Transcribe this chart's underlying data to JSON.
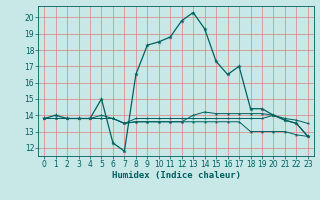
{
  "xlabel": "Humidex (Indice chaleur)",
  "bg_color": "#c8e8e8",
  "grid_color": "#e08080",
  "line_color": "#006060",
  "xlim": [
    -0.5,
    23.5
  ],
  "ylim": [
    11.5,
    20.7
  ],
  "yticks": [
    12,
    13,
    14,
    15,
    16,
    17,
    18,
    19,
    20
  ],
  "xticks": [
    0,
    1,
    2,
    3,
    4,
    5,
    6,
    7,
    8,
    9,
    10,
    11,
    12,
    13,
    14,
    15,
    16,
    17,
    18,
    19,
    20,
    21,
    22,
    23
  ],
  "main_line": [
    [
      0,
      13.8
    ],
    [
      1,
      14.0
    ],
    [
      2,
      13.8
    ],
    [
      3,
      13.8
    ],
    [
      4,
      13.8
    ],
    [
      5,
      15.0
    ],
    [
      6,
      12.3
    ],
    [
      7,
      11.8
    ],
    [
      8,
      16.5
    ],
    [
      9,
      18.3
    ],
    [
      10,
      18.5
    ],
    [
      11,
      18.8
    ],
    [
      12,
      19.8
    ],
    [
      13,
      20.3
    ],
    [
      14,
      19.3
    ],
    [
      15,
      17.3
    ],
    [
      16,
      16.5
    ],
    [
      17,
      17.0
    ],
    [
      18,
      14.4
    ],
    [
      19,
      14.4
    ],
    [
      20,
      14.0
    ],
    [
      21,
      13.7
    ],
    [
      22,
      13.5
    ],
    [
      23,
      12.7
    ]
  ],
  "flat_lines": [
    [
      [
        0,
        13.8
      ],
      [
        1,
        13.8
      ],
      [
        2,
        13.8
      ],
      [
        3,
        13.8
      ],
      [
        4,
        13.8
      ],
      [
        5,
        13.8
      ],
      [
        6,
        13.8
      ],
      [
        7,
        13.5
      ],
      [
        8,
        13.6
      ],
      [
        9,
        13.6
      ],
      [
        10,
        13.6
      ],
      [
        11,
        13.6
      ],
      [
        12,
        13.6
      ],
      [
        13,
        13.6
      ],
      [
        14,
        13.6
      ],
      [
        15,
        13.6
      ],
      [
        16,
        13.6
      ],
      [
        17,
        13.6
      ],
      [
        18,
        13.0
      ],
      [
        19,
        13.0
      ],
      [
        20,
        13.0
      ],
      [
        21,
        13.0
      ],
      [
        22,
        12.8
      ],
      [
        23,
        12.7
      ]
    ],
    [
      [
        0,
        13.8
      ],
      [
        1,
        13.8
      ],
      [
        2,
        13.8
      ],
      [
        3,
        13.8
      ],
      [
        4,
        13.8
      ],
      [
        5,
        13.8
      ],
      [
        6,
        13.8
      ],
      [
        7,
        13.5
      ],
      [
        8,
        13.6
      ],
      [
        9,
        13.6
      ],
      [
        10,
        13.6
      ],
      [
        11,
        13.6
      ],
      [
        12,
        13.6
      ],
      [
        13,
        14.0
      ],
      [
        14,
        14.2
      ],
      [
        15,
        14.1
      ],
      [
        16,
        14.1
      ],
      [
        17,
        14.1
      ],
      [
        18,
        14.1
      ],
      [
        19,
        14.1
      ],
      [
        20,
        14.0
      ],
      [
        21,
        13.7
      ],
      [
        22,
        13.5
      ],
      [
        23,
        12.7
      ]
    ],
    [
      [
        0,
        13.8
      ],
      [
        1,
        13.8
      ],
      [
        2,
        13.8
      ],
      [
        3,
        13.8
      ],
      [
        4,
        13.8
      ],
      [
        5,
        14.0
      ],
      [
        6,
        13.8
      ],
      [
        7,
        13.5
      ],
      [
        8,
        13.8
      ],
      [
        9,
        13.8
      ],
      [
        10,
        13.8
      ],
      [
        11,
        13.8
      ],
      [
        12,
        13.8
      ],
      [
        13,
        13.8
      ],
      [
        14,
        13.8
      ],
      [
        15,
        13.8
      ],
      [
        16,
        13.8
      ],
      [
        17,
        13.8
      ],
      [
        18,
        13.8
      ],
      [
        19,
        13.8
      ],
      [
        20,
        14.0
      ],
      [
        21,
        13.8
      ],
      [
        22,
        13.7
      ],
      [
        23,
        13.5
      ]
    ]
  ]
}
